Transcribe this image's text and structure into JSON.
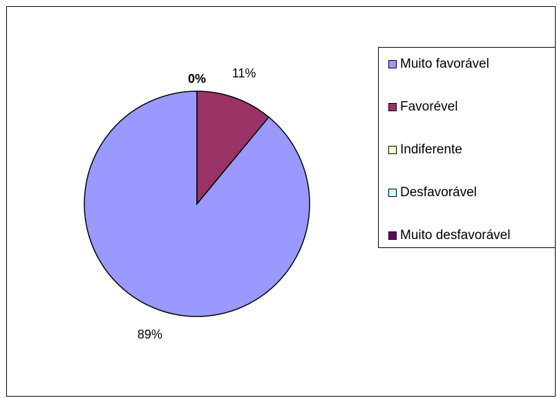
{
  "chart_data": {
    "type": "pie",
    "categories": [
      "Muito favorável",
      "Favorével",
      "Indiferente",
      "Desfavorável",
      "Muito desfavorável"
    ],
    "values": [
      89,
      11,
      0,
      0,
      0
    ],
    "data_labels": [
      "89%",
      "11%",
      "",
      "",
      "0%"
    ],
    "colors": [
      "#9999FF",
      "#993366",
      "#FFFFCC",
      "#CCFFFF",
      "#660066"
    ],
    "legend_position": "right",
    "title": ""
  }
}
